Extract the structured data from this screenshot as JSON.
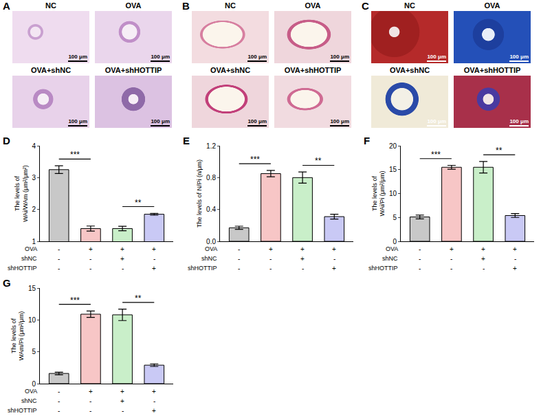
{
  "image_panels": [
    {
      "panel": "A",
      "images": [
        {
          "label": "NC",
          "scale_bar": "100 μm"
        },
        {
          "label": "OVA",
          "scale_bar": "100 μm"
        },
        {
          "label": "OVA+shNC",
          "scale_bar": "100 μm"
        },
        {
          "label": "OVA+shHOTTIP",
          "scale_bar": "100 μm"
        }
      ]
    },
    {
      "panel": "B",
      "images": [
        {
          "label": "NC",
          "scale_bar": "100 μm"
        },
        {
          "label": "OVA",
          "scale_bar": "100 μm"
        },
        {
          "label": "OVA+shNC",
          "scale_bar": "100 μm"
        },
        {
          "label": "OVA+shHOTTIP",
          "scale_bar": "100 μm"
        }
      ]
    },
    {
      "panel": "C",
      "images": [
        {
          "label": "NC",
          "scale_bar": "100 μm"
        },
        {
          "label": "OVA",
          "scale_bar": "100 μm"
        },
        {
          "label": "OVA+shNC",
          "scale_bar": "100 μm"
        },
        {
          "label": "OVA+shHOTTIP",
          "scale_bar": "100 μm"
        }
      ]
    }
  ],
  "chart_data": [
    {
      "panel": "D",
      "type": "bar",
      "y_label": [
        "The levels of",
        "WAi/WAm (μm²/μm²)"
      ],
      "categories": [
        null,
        null,
        null,
        null
      ],
      "values": [
        3.25,
        1.4,
        1.4,
        1.85
      ],
      "errors": [
        0.12,
        0.08,
        0.07,
        0.03
      ],
      "colors": [
        "#c8c8c8",
        "#f7c6c6",
        "#c9efc9",
        "#c9c9f5"
      ],
      "ylim": [
        1,
        4
      ],
      "yticks": [
        1,
        2,
        3,
        4
      ],
      "tick_labels": "y",
      "annotations": [
        {
          "from": 0,
          "to": 1,
          "label": "***"
        },
        {
          "from": 2,
          "to": 3,
          "label": "**"
        }
      ],
      "conditions": [
        {
          "name": "OVA",
          "values": [
            "-",
            "+",
            "+",
            "+"
          ]
        },
        {
          "name": "shNC",
          "values": [
            "-",
            "-",
            "+",
            "-"
          ]
        },
        {
          "name": "shHOTTIP",
          "values": [
            "-",
            "-",
            "-",
            "+"
          ]
        }
      ]
    },
    {
      "panel": "E",
      "type": "bar",
      "y_label": [
        "The levels of N/Pi (n/μm)"
      ],
      "categories": [
        null,
        null,
        null,
        null
      ],
      "values": [
        0.17,
        0.85,
        0.8,
        0.31
      ],
      "errors": [
        0.02,
        0.04,
        0.07,
        0.03
      ],
      "colors": [
        "#c8c8c8",
        "#f7c6c6",
        "#c9efc9",
        "#c9c9f5"
      ],
      "ylim": [
        0,
        1.2
      ],
      "yticks": [
        {
          "value": 0,
          "label": "0.0"
        },
        0.4,
        0.8,
        1.2
      ],
      "tick_labels": "y",
      "annotations": [
        {
          "from": 0,
          "to": 1,
          "label": "***"
        },
        {
          "from": 2,
          "to": 3,
          "label": "**"
        }
      ],
      "conditions": [
        {
          "name": "OVA",
          "values": [
            "-",
            "+",
            "+",
            "+"
          ]
        },
        {
          "name": "shNC",
          "values": [
            "-",
            "-",
            "+",
            "-"
          ]
        },
        {
          "name": "shHOTTIP",
          "values": [
            "-",
            "-",
            "-",
            "+"
          ]
        }
      ]
    },
    {
      "panel": "F",
      "type": "bar",
      "y_label": [
        "The levels of",
        "WAi/Pi (μm²/μm)"
      ],
      "categories": [
        null,
        null,
        null,
        null
      ],
      "values": [
        5.1,
        15.5,
        15.5,
        5.4
      ],
      "errors": [
        0.4,
        0.4,
        1.2,
        0.4
      ],
      "colors": [
        "#c8c8c8",
        "#f7c6c6",
        "#c9efc9",
        "#c9c9f5"
      ],
      "ylim": [
        0,
        20
      ],
      "yticks": [
        0,
        5,
        10,
        15,
        20
      ],
      "tick_labels": "y",
      "annotations": [
        {
          "from": 0,
          "to": 1,
          "label": "***"
        },
        {
          "from": 2,
          "to": 3,
          "label": "**"
        }
      ],
      "conditions": [
        {
          "name": "OVA",
          "values": [
            "-",
            "+",
            "+",
            "+"
          ]
        },
        {
          "name": "shNC",
          "values": [
            "-",
            "-",
            "+",
            "-"
          ]
        },
        {
          "name": "shHOTTIP",
          "values": [
            "-",
            "-",
            "-",
            "+"
          ]
        }
      ]
    },
    {
      "panel": "G",
      "type": "bar",
      "y_label": [
        "The levels of",
        "WAm/Pi (μm²/μm)"
      ],
      "categories": [
        null,
        null,
        null,
        null
      ],
      "values": [
        1.6,
        10.9,
        10.8,
        2.9
      ],
      "errors": [
        0.2,
        0.5,
        0.9,
        0.2
      ],
      "colors": [
        "#c8c8c8",
        "#f7c6c6",
        "#c9efc9",
        "#c9c9f5"
      ],
      "ylim": [
        0,
        15
      ],
      "yticks": [
        0,
        5,
        10,
        15
      ],
      "tick_labels": "y",
      "annotations": [
        {
          "from": 0,
          "to": 1,
          "label": "***"
        },
        {
          "from": 2,
          "to": 3,
          "label": "**"
        }
      ],
      "conditions": [
        {
          "name": "OVA",
          "values": [
            "-",
            "+",
            "+",
            "+"
          ]
        },
        {
          "name": "shNC",
          "values": [
            "-",
            "-",
            "+",
            "-"
          ]
        },
        {
          "name": "shHOTTIP",
          "values": [
            "-",
            "-",
            "-",
            "+"
          ]
        }
      ]
    }
  ]
}
